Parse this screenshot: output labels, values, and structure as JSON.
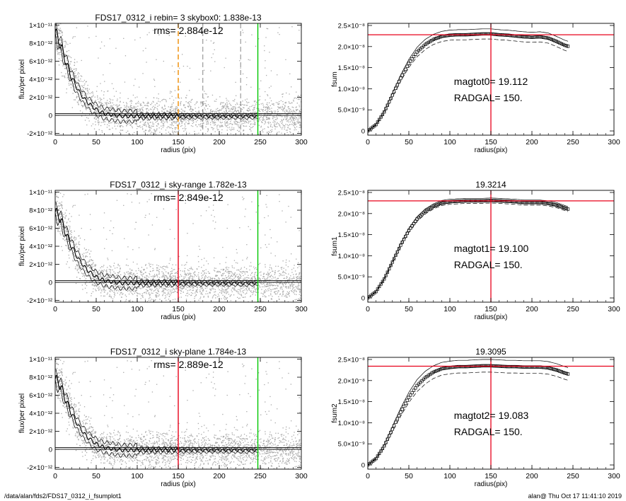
{
  "footer": {
    "left": "/data/alan/fds2/FDS17_0312_i_fsumplot1",
    "right": "alan@  Thu Oct 17 11:41:10 2019"
  },
  "colors": {
    "axis": "#000000",
    "scatter": "#a9a9a9",
    "profile": "#000000",
    "red": "#e8001a",
    "green": "#00c800",
    "orange": "#f08c00"
  },
  "chart_data": [
    {
      "type": "scatter",
      "panel": "left-1",
      "title": "FDS17_0312_i rebin= 3    skybox0:  1.838e-13",
      "annotation": "rms= 2.884e-12",
      "xlabel": "radius (pix)",
      "ylabel": "flux/per pixel",
      "xlim": [
        0,
        300
      ],
      "ylim": [
        -2.2e-12,
        1.02e-11
      ],
      "xticks": [
        "0",
        "50",
        "100",
        "150",
        "200",
        "250",
        "300"
      ],
      "yticks": [
        "1×10⁻¹¹",
        "8×10⁻¹²",
        "6×10⁻¹²",
        "4×10⁻¹²",
        "2×10⁻¹²",
        "0",
        "-2×10⁻¹²"
      ],
      "ytick_values": [
        1e-11,
        8e-12,
        6e-12,
        4e-12,
        2e-12,
        0,
        -2e-12
      ],
      "vlines": [
        {
          "x": 150,
          "color": "orange",
          "style": "dashed"
        },
        {
          "x": 180,
          "color": "gray",
          "style": "dashed"
        },
        {
          "x": 226,
          "color": "gray",
          "style": "dashed"
        },
        {
          "x": 247,
          "color": "green",
          "style": "solid"
        }
      ],
      "hlines": [
        2e-13,
        0
      ],
      "profile": {
        "x": [
          0,
          5,
          10,
          15,
          20,
          25,
          30,
          35,
          40,
          45,
          50,
          55,
          60,
          70,
          80,
          100,
          150,
          200,
          247
        ],
        "y": [
          9.2e-12,
          8.2e-12,
          6.8e-12,
          5.4e-12,
          4.2e-12,
          3.3e-12,
          2.5e-12,
          1.9e-12,
          1.4e-12,
          1e-12,
          6.5e-13,
          4e-13,
          2e-13,
          5e-14,
          -1e-13,
          -1e-13,
          -1e-13,
          -1e-13,
          -1e-13
        ]
      }
    },
    {
      "type": "line",
      "panel": "right-1",
      "title": "",
      "annotations": [
        "magtot0=  19.112",
        "RADGAL=    150."
      ],
      "xlabel": "radius(pix)",
      "ylabel": "fsum",
      "xlim": [
        0,
        300
      ],
      "ylim": [
        -1e-09,
        2.55e-08
      ],
      "xticks": [
        "0",
        "50",
        "100",
        "150",
        "200",
        "250",
        "300"
      ],
      "yticks": [
        "2.5×10⁻⁸",
        "2.0×10⁻⁸",
        "1.5×10⁻⁸",
        "1.0×10⁻⁸",
        "5.0×10⁻⁹",
        "0"
      ],
      "ytick_values": [
        2.5e-08,
        2e-08,
        1.5e-08,
        1e-08,
        5e-09,
        0
      ],
      "vline": 150,
      "hline": 2.28e-08,
      "curve": {
        "x": [
          0,
          10,
          20,
          30,
          40,
          50,
          60,
          70,
          80,
          90,
          100,
          110,
          120,
          130,
          140,
          150,
          160,
          170,
          180,
          190,
          200,
          210,
          220,
          230,
          240,
          245
        ],
        "y": [
          0,
          1.5e-09,
          4.5e-09,
          8.5e-09,
          1.25e-08,
          1.6e-08,
          1.87e-08,
          2.05e-08,
          2.17e-08,
          2.24e-08,
          2.27e-08,
          2.28e-08,
          2.28e-08,
          2.29e-08,
          2.3e-08,
          2.3e-08,
          2.28e-08,
          2.27e-08,
          2.25e-08,
          2.23e-08,
          2.22e-08,
          2.23e-08,
          2.2e-08,
          2.12e-08,
          2.03e-08,
          2e-08
        ]
      },
      "spread": 1.2e-09
    },
    {
      "type": "scatter",
      "panel": "left-2",
      "title": "FDS17_0312_i sky-range  1.782e-13",
      "annotation": "rms= 2.849e-12",
      "xlabel": "radius (pix)",
      "ylabel": "flux/per pixel",
      "xlim": [
        0,
        300
      ],
      "ylim": [
        -2.2e-12,
        1.02e-11
      ],
      "xticks": [
        "0",
        "50",
        "100",
        "150",
        "200",
        "250",
        "300"
      ],
      "yticks": [
        "1×10⁻¹¹",
        "8×10⁻¹²",
        "6×10⁻¹²",
        "4×10⁻¹²",
        "2×10⁻¹²",
        "0",
        "-2×10⁻¹²"
      ],
      "ytick_values": [
        1e-11,
        8e-12,
        6e-12,
        4e-12,
        2e-12,
        0,
        -2e-12
      ],
      "vlines": [
        {
          "x": 150,
          "color": "red",
          "style": "solid"
        },
        {
          "x": 247,
          "color": "green",
          "style": "solid"
        }
      ],
      "hlines": [
        2e-13,
        0
      ],
      "profile": {
        "x": [
          0,
          5,
          10,
          15,
          20,
          25,
          30,
          35,
          40,
          45,
          50,
          55,
          60,
          70,
          80,
          100,
          150,
          200,
          247
        ],
        "y": [
          7.8e-12,
          7.3e-12,
          6.2e-12,
          5e-12,
          4e-12,
          3.1e-12,
          2.4e-12,
          1.8e-12,
          1.3e-12,
          9.5e-13,
          6e-13,
          3.8e-13,
          2e-13,
          5e-14,
          -1e-13,
          -1e-13,
          -1e-13,
          -1e-13,
          -1e-13
        ]
      }
    },
    {
      "type": "line",
      "panel": "right-2",
      "title": "19.3214",
      "annotations": [
        "magtot1=  19.100",
        "RADGAL=    150."
      ],
      "xlabel": "radius(pix)",
      "ylabel": "fsum1",
      "xlim": [
        0,
        300
      ],
      "ylim": [
        -1e-09,
        2.55e-08
      ],
      "xticks": [
        "0",
        "50",
        "100",
        "150",
        "200",
        "250",
        "300"
      ],
      "yticks": [
        "2.5×10⁻⁸",
        "2.0×10⁻⁸",
        "1.5×10⁻⁸",
        "1.0×10⁻⁸",
        "5.0×10⁻⁹",
        "0"
      ],
      "ytick_values": [
        2.5e-08,
        2e-08,
        1.5e-08,
        1e-08,
        5e-09,
        0
      ],
      "vline": 150,
      "hline": 2.3e-08,
      "curve": {
        "x": [
          0,
          10,
          20,
          30,
          40,
          50,
          60,
          70,
          80,
          90,
          100,
          110,
          120,
          130,
          140,
          150,
          160,
          170,
          180,
          190,
          200,
          210,
          220,
          230,
          240,
          245
        ],
        "y": [
          0,
          1.5e-09,
          4.5e-09,
          8.5e-09,
          1.25e-08,
          1.6e-08,
          1.87e-08,
          2.05e-08,
          2.17e-08,
          2.25e-08,
          2.28e-08,
          2.29e-08,
          2.3e-08,
          2.3e-08,
          2.3e-08,
          2.31e-08,
          2.3e-08,
          2.29e-08,
          2.28e-08,
          2.26e-08,
          2.26e-08,
          2.26e-08,
          2.24e-08,
          2.2e-08,
          2.13e-08,
          2.1e-08
        ]
      },
      "spread": 6e-10
    },
    {
      "type": "scatter",
      "panel": "left-3",
      "title": "FDS17_0312_i sky-plane  1.784e-13",
      "annotation": "rms= 2.889e-12",
      "xlabel": "radius (pix)",
      "ylabel": "flux/per pixel",
      "xlim": [
        0,
        300
      ],
      "ylim": [
        -2.2e-12,
        1.02e-11
      ],
      "xticks": [
        "0",
        "50",
        "100",
        "150",
        "200",
        "250",
        "300"
      ],
      "yticks": [
        "1×10⁻¹¹",
        "8×10⁻¹²",
        "6×10⁻¹²",
        "4×10⁻¹²",
        "2×10⁻¹²",
        "0",
        "-2×10⁻¹²"
      ],
      "ytick_values": [
        1e-11,
        8e-12,
        6e-12,
        4e-12,
        2e-12,
        0,
        -2e-12
      ],
      "vlines": [
        {
          "x": 150,
          "color": "red",
          "style": "solid"
        },
        {
          "x": 247,
          "color": "green",
          "style": "solid"
        }
      ],
      "hlines": [
        2e-13,
        0
      ],
      "profile": {
        "x": [
          0,
          5,
          10,
          15,
          20,
          25,
          30,
          35,
          40,
          45,
          50,
          55,
          60,
          70,
          80,
          100,
          150,
          200,
          247
        ],
        "y": [
          7.8e-12,
          7.3e-12,
          6.2e-12,
          5e-12,
          4e-12,
          3.1e-12,
          2.4e-12,
          1.8e-12,
          1.3e-12,
          9.5e-13,
          6e-13,
          3.8e-13,
          2e-13,
          5e-14,
          -1e-13,
          -1e-13,
          -1e-13,
          -1e-13,
          -1e-13
        ]
      }
    },
    {
      "type": "line",
      "panel": "right-3",
      "title": "19.3095",
      "annotations": [
        "magtot2=  19.083",
        "RADGAL=    150."
      ],
      "xlabel": "radius(pix)",
      "ylabel": "fsum2",
      "xlim": [
        0,
        300
      ],
      "ylim": [
        -1e-09,
        2.55e-08
      ],
      "xticks": [
        "0",
        "50",
        "100",
        "150",
        "200",
        "250",
        "300"
      ],
      "yticks": [
        "2.5×10⁻⁸",
        "2.0×10⁻⁸",
        "1.5×10⁻⁸",
        "1.0×10⁻⁸",
        "5.0×10⁻⁹",
        "0"
      ],
      "ytick_values": [
        2.5e-08,
        2e-08,
        1.5e-08,
        1e-08,
        5e-09,
        0
      ],
      "vline": 150,
      "hline": 2.34e-08,
      "curve": {
        "x": [
          0,
          10,
          20,
          30,
          40,
          50,
          60,
          70,
          80,
          90,
          100,
          110,
          120,
          130,
          140,
          150,
          160,
          170,
          180,
          190,
          200,
          210,
          220,
          230,
          240,
          245
        ],
        "y": [
          0,
          1.5e-09,
          4.5e-09,
          8.5e-09,
          1.25e-08,
          1.6e-08,
          1.88e-08,
          2.07e-08,
          2.2e-08,
          2.28e-08,
          2.31e-08,
          2.33e-08,
          2.33e-08,
          2.34e-08,
          2.35e-08,
          2.35e-08,
          2.34e-08,
          2.33e-08,
          2.33e-08,
          2.32e-08,
          2.32e-08,
          2.32e-08,
          2.3e-08,
          2.25e-08,
          2.18e-08,
          2.15e-08
        ]
      },
      "spread": 1.5e-09
    }
  ]
}
